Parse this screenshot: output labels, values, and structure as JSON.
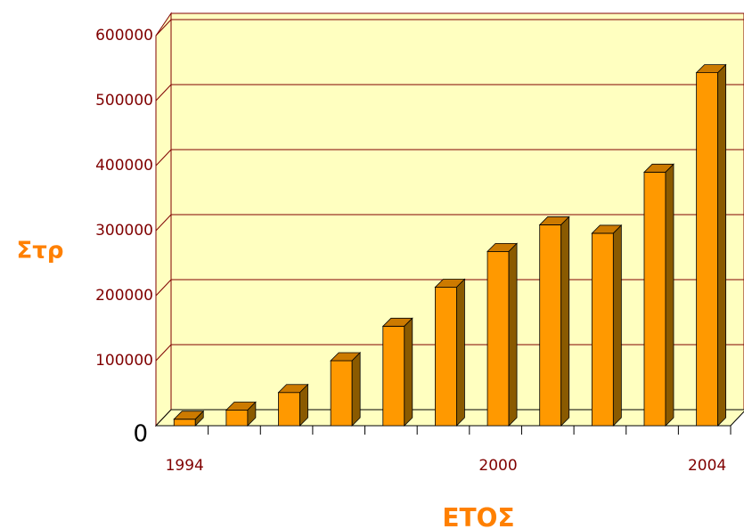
{
  "chart_data": {
    "type": "bar3d",
    "xlabel": "ΕΤΟΣ",
    "ylabel": "Στρ",
    "categories": [
      "1994",
      null,
      null,
      null,
      null,
      null,
      "2000",
      null,
      null,
      null,
      "2004"
    ],
    "values": [
      10000,
      24000,
      51000,
      100000,
      153000,
      213000,
      268000,
      309000,
      296000,
      390000,
      543000
    ],
    "color": "#ff9900",
    "ylim": [
      0,
      600000
    ],
    "yticks": [
      0,
      100000,
      200000,
      300000,
      400000,
      500000,
      600000
    ],
    "grid": true
  }
}
